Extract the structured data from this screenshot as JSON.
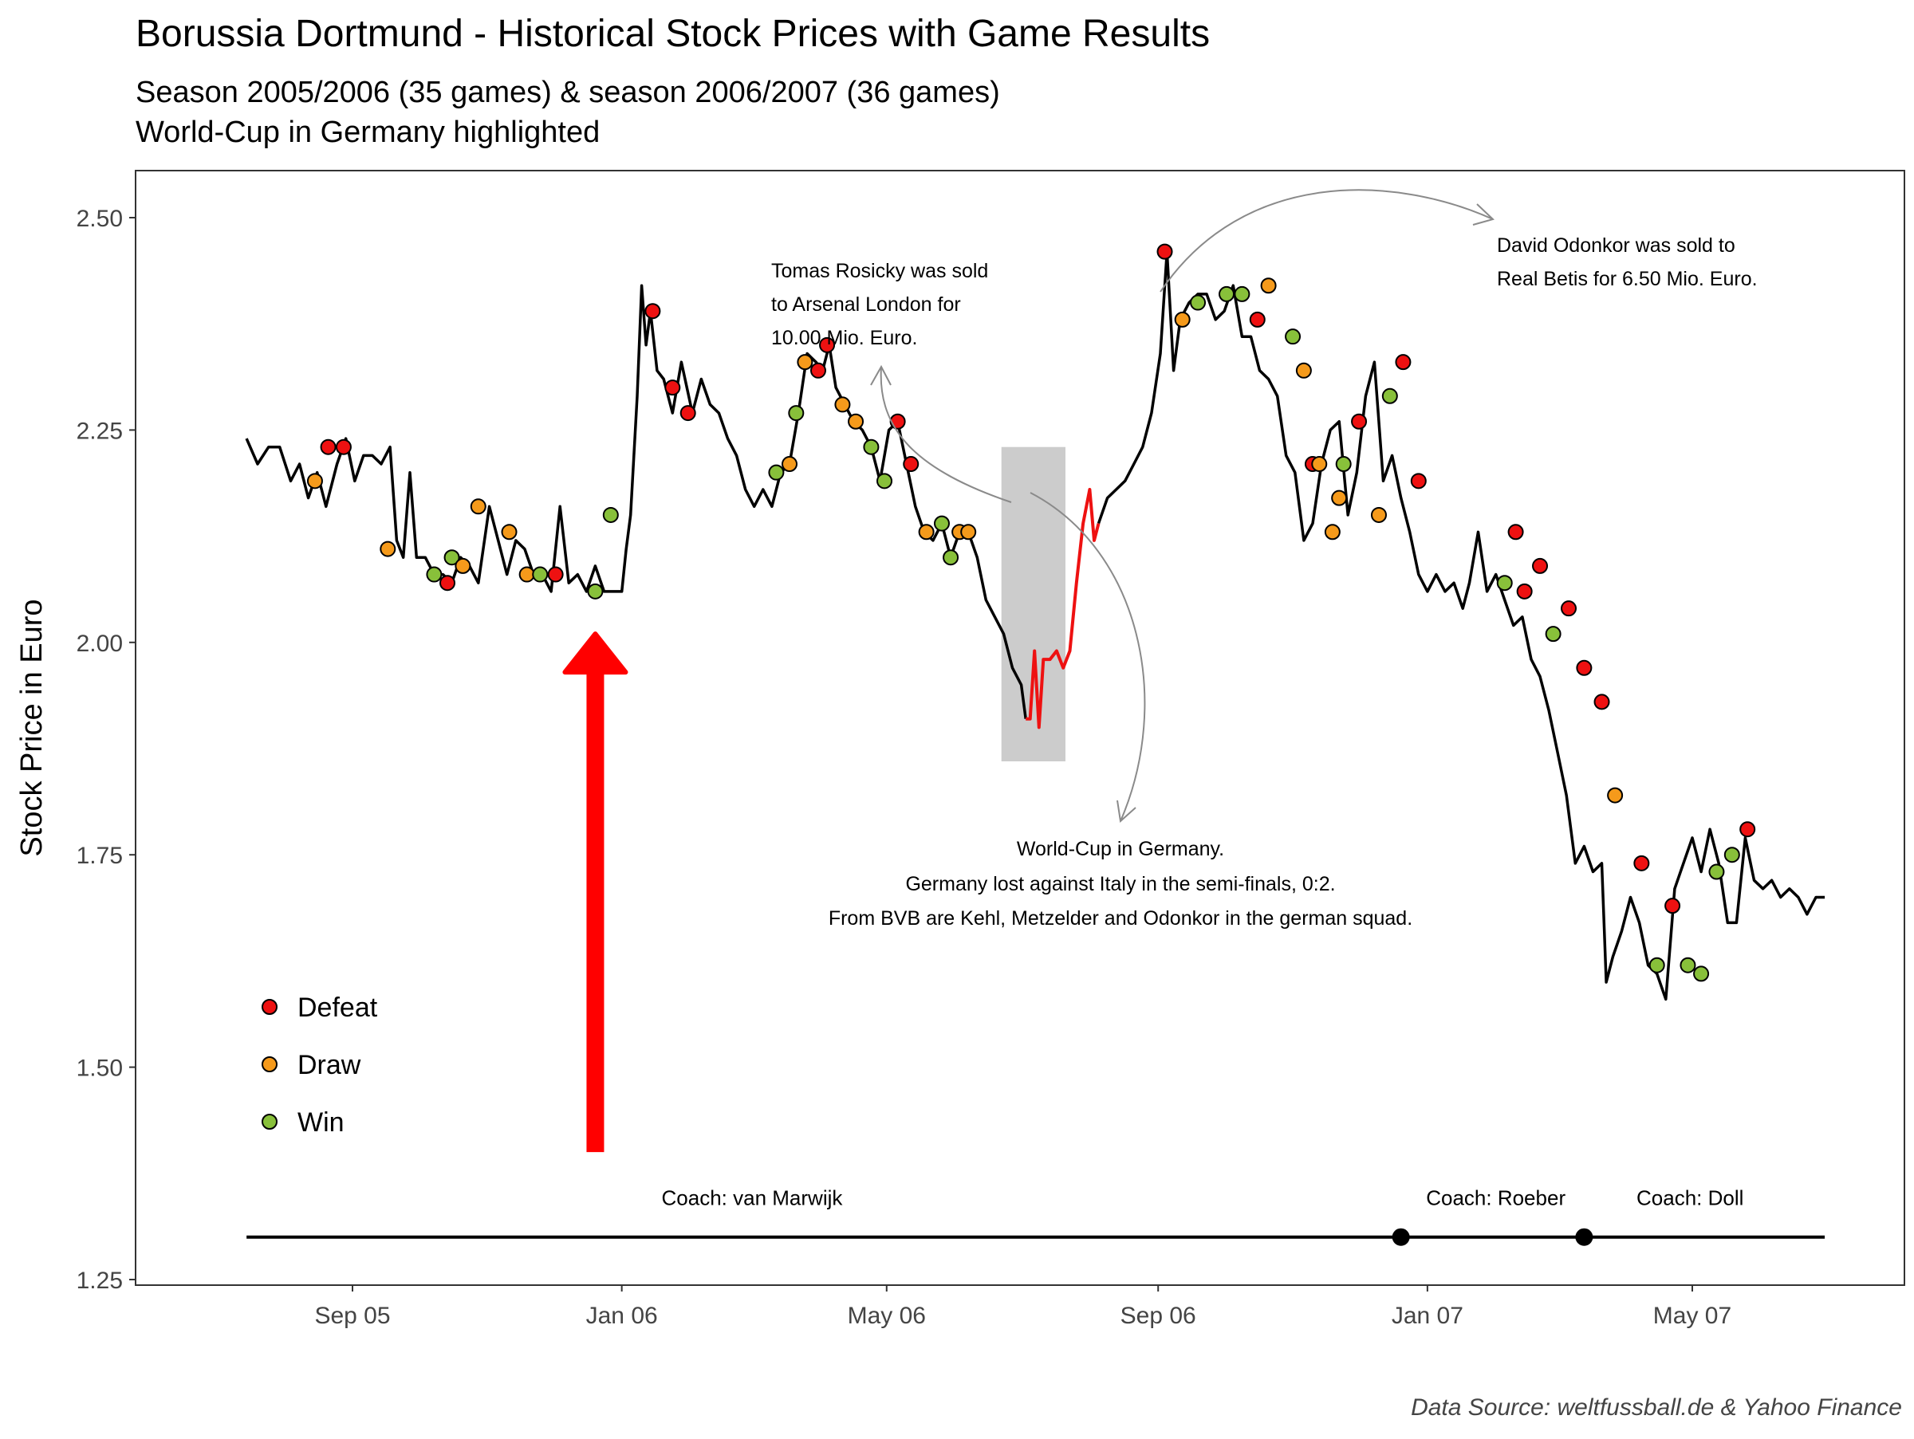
{
  "chart_data": {
    "type": "line",
    "title": "Borussia Dortmund - Historical Stock Prices with Game Results",
    "subtitle_lines": [
      "Season 2005/2006 (35 games) & season 2006/2007 (36 games)",
      "World-Cup in Germany highlighted"
    ],
    "ylabel": "Stock Price in Euro",
    "caption": "Data Source: weltfussball.de & Yahoo Finance",
    "x_range": [
      "2005-07-15",
      "2007-07-01"
    ],
    "ylim": [
      1.25,
      2.55
    ],
    "y_ticks": [
      1.25,
      1.5,
      1.75,
      2.0,
      2.25,
      2.5
    ],
    "y_tick_labels": [
      "1.25",
      "1.50",
      "1.75",
      "2.00",
      "2.25",
      "2.50"
    ],
    "x_ticks": [
      {
        "date": "2005-09-01",
        "label": "Sep 05"
      },
      {
        "date": "2006-01-01",
        "label": "Jan 06"
      },
      {
        "date": "2006-05-01",
        "label": "May 06"
      },
      {
        "date": "2006-09-01",
        "label": "Sep 06"
      },
      {
        "date": "2007-01-01",
        "label": "Jan 07"
      },
      {
        "date": "2007-05-01",
        "label": "May 07"
      }
    ],
    "grid": false,
    "legend_position": "bottom-left",
    "legend": [
      {
        "key": "Defeat",
        "label": "Defeat"
      },
      {
        "key": "Draw",
        "label": "Draw"
      },
      {
        "key": "Win",
        "label": "Win"
      }
    ],
    "colors": {
      "Defeat": "#ee1111",
      "Draw": "#f59a1b",
      "Win": "#88c03a",
      "price_line": "#000000",
      "worldcup_line": "#ee1111",
      "worldcup_band": "#cccccc",
      "arrow": "#ff0000"
    },
    "price_series": [
      [
        "2005-07-15",
        2.24
      ],
      [
        "2005-07-20",
        2.21
      ],
      [
        "2005-07-25",
        2.23
      ],
      [
        "2005-07-30",
        2.23
      ],
      [
        "2005-08-04",
        2.19
      ],
      [
        "2005-08-08",
        2.21
      ],
      [
        "2005-08-12",
        2.17
      ],
      [
        "2005-08-16",
        2.2
      ],
      [
        "2005-08-20",
        2.16
      ],
      [
        "2005-08-25",
        2.21
      ],
      [
        "2005-08-29",
        2.24
      ],
      [
        "2005-09-02",
        2.19
      ],
      [
        "2005-09-06",
        2.22
      ],
      [
        "2005-09-10",
        2.22
      ],
      [
        "2005-09-14",
        2.21
      ],
      [
        "2005-09-18",
        2.23
      ],
      [
        "2005-09-21",
        2.12
      ],
      [
        "2005-09-24",
        2.1
      ],
      [
        "2005-09-27",
        2.2
      ],
      [
        "2005-09-30",
        2.1
      ],
      [
        "2005-10-04",
        2.1
      ],
      [
        "2005-10-08",
        2.08
      ],
      [
        "2005-10-12",
        2.08
      ],
      [
        "2005-10-16",
        2.07
      ],
      [
        "2005-10-20",
        2.1
      ],
      [
        "2005-10-24",
        2.09
      ],
      [
        "2005-10-28",
        2.07
      ],
      [
        "2005-11-02",
        2.16
      ],
      [
        "2005-11-06",
        2.12
      ],
      [
        "2005-11-10",
        2.08
      ],
      [
        "2005-11-14",
        2.12
      ],
      [
        "2005-11-18",
        2.11
      ],
      [
        "2005-11-22",
        2.08
      ],
      [
        "2005-11-26",
        2.08
      ],
      [
        "2005-11-30",
        2.06
      ],
      [
        "2005-12-04",
        2.16
      ],
      [
        "2005-12-08",
        2.07
      ],
      [
        "2005-12-12",
        2.08
      ],
      [
        "2005-12-16",
        2.06
      ],
      [
        "2005-12-20",
        2.09
      ],
      [
        "2005-12-24",
        2.06
      ],
      [
        "2005-12-28",
        2.06
      ],
      [
        "2006-01-01",
        2.06
      ],
      [
        "2006-01-03",
        2.11
      ],
      [
        "2006-01-05",
        2.15
      ],
      [
        "2006-01-08",
        2.29
      ],
      [
        "2006-01-10",
        2.42
      ],
      [
        "2006-01-12",
        2.35
      ],
      [
        "2006-01-14",
        2.39
      ],
      [
        "2006-01-17",
        2.32
      ],
      [
        "2006-01-20",
        2.31
      ],
      [
        "2006-01-24",
        2.27
      ],
      [
        "2006-01-28",
        2.33
      ],
      [
        "2006-02-02",
        2.27
      ],
      [
        "2006-02-06",
        2.31
      ],
      [
        "2006-02-10",
        2.28
      ],
      [
        "2006-02-14",
        2.27
      ],
      [
        "2006-02-18",
        2.24
      ],
      [
        "2006-02-22",
        2.22
      ],
      [
        "2006-02-26",
        2.18
      ],
      [
        "2006-03-02",
        2.16
      ],
      [
        "2006-03-06",
        2.18
      ],
      [
        "2006-03-10",
        2.16
      ],
      [
        "2006-03-14",
        2.2
      ],
      [
        "2006-03-18",
        2.21
      ],
      [
        "2006-03-22",
        2.27
      ],
      [
        "2006-03-26",
        2.34
      ],
      [
        "2006-03-30",
        2.33
      ],
      [
        "2006-04-02",
        2.32
      ],
      [
        "2006-04-05",
        2.35
      ],
      [
        "2006-04-08",
        2.3
      ],
      [
        "2006-04-12",
        2.28
      ],
      [
        "2006-04-16",
        2.26
      ],
      [
        "2006-04-20",
        2.25
      ],
      [
        "2006-04-24",
        2.23
      ],
      [
        "2006-04-28",
        2.19
      ],
      [
        "2006-05-02",
        2.25
      ],
      [
        "2006-05-06",
        2.26
      ],
      [
        "2006-05-10",
        2.21
      ],
      [
        "2006-05-14",
        2.16
      ],
      [
        "2006-05-18",
        2.13
      ],
      [
        "2006-05-22",
        2.12
      ],
      [
        "2006-05-26",
        2.14
      ],
      [
        "2006-05-30",
        2.1
      ],
      [
        "2006-06-03",
        2.13
      ],
      [
        "2006-06-07",
        2.13
      ],
      [
        "2006-06-11",
        2.1
      ],
      [
        "2006-06-15",
        2.05
      ],
      [
        "2006-06-19",
        2.03
      ],
      [
        "2006-06-23",
        2.01
      ],
      [
        "2006-06-27",
        1.97
      ],
      [
        "2006-07-01",
        1.95
      ],
      [
        "2006-07-03",
        1.91
      ]
    ],
    "worldcup_series": [
      [
        "2006-07-03",
        1.91
      ],
      [
        "2006-07-05",
        1.91
      ],
      [
        "2006-07-07",
        1.99
      ],
      [
        "2006-07-09",
        1.9
      ],
      [
        "2006-07-11",
        1.98
      ],
      [
        "2006-07-14",
        1.98
      ],
      [
        "2006-07-17",
        1.99
      ],
      [
        "2006-07-20",
        1.97
      ],
      [
        "2006-07-23",
        1.99
      ],
      [
        "2006-07-26",
        2.07
      ],
      [
        "2006-07-29",
        2.14
      ],
      [
        "2006-08-01",
        2.18
      ],
      [
        "2006-08-03",
        2.12
      ],
      [
        "2006-08-05",
        2.14
      ]
    ],
    "price_series_2": [
      [
        "2006-08-05",
        2.14
      ],
      [
        "2006-08-09",
        2.17
      ],
      [
        "2006-08-13",
        2.18
      ],
      [
        "2006-08-17",
        2.19
      ],
      [
        "2006-08-21",
        2.21
      ],
      [
        "2006-08-25",
        2.23
      ],
      [
        "2006-08-29",
        2.27
      ],
      [
        "2006-09-02",
        2.34
      ],
      [
        "2006-09-05",
        2.46
      ],
      [
        "2006-09-08",
        2.32
      ],
      [
        "2006-09-11",
        2.38
      ],
      [
        "2006-09-15",
        2.4
      ],
      [
        "2006-09-19",
        2.41
      ],
      [
        "2006-09-23",
        2.41
      ],
      [
        "2006-09-27",
        2.38
      ],
      [
        "2006-10-01",
        2.39
      ],
      [
        "2006-10-05",
        2.42
      ],
      [
        "2006-10-09",
        2.36
      ],
      [
        "2006-10-13",
        2.36
      ],
      [
        "2006-10-17",
        2.32
      ],
      [
        "2006-10-21",
        2.31
      ],
      [
        "2006-10-25",
        2.29
      ],
      [
        "2006-10-29",
        2.22
      ],
      [
        "2006-11-02",
        2.2
      ],
      [
        "2006-11-06",
        2.12
      ],
      [
        "2006-11-10",
        2.14
      ],
      [
        "2006-11-14",
        2.21
      ],
      [
        "2006-11-18",
        2.25
      ],
      [
        "2006-11-22",
        2.26
      ],
      [
        "2006-11-26",
        2.15
      ],
      [
        "2006-11-30",
        2.2
      ],
      [
        "2006-12-04",
        2.29
      ],
      [
        "2006-12-08",
        2.33
      ],
      [
        "2006-12-12",
        2.19
      ],
      [
        "2006-12-16",
        2.22
      ],
      [
        "2006-12-20",
        2.17
      ],
      [
        "2006-12-24",
        2.13
      ],
      [
        "2006-12-28",
        2.08
      ],
      [
        "2007-01-01",
        2.06
      ],
      [
        "2007-01-05",
        2.08
      ],
      [
        "2007-01-09",
        2.06
      ],
      [
        "2007-01-13",
        2.07
      ],
      [
        "2007-01-17",
        2.04
      ],
      [
        "2007-01-20",
        2.07
      ],
      [
        "2007-01-24",
        2.13
      ],
      [
        "2007-01-28",
        2.06
      ],
      [
        "2007-02-01",
        2.08
      ],
      [
        "2007-02-05",
        2.05
      ],
      [
        "2007-02-09",
        2.02
      ],
      [
        "2007-02-13",
        2.03
      ],
      [
        "2007-02-17",
        1.98
      ],
      [
        "2007-02-21",
        1.96
      ],
      [
        "2007-02-25",
        1.92
      ],
      [
        "2007-03-01",
        1.87
      ],
      [
        "2007-03-05",
        1.82
      ],
      [
        "2007-03-09",
        1.74
      ],
      [
        "2007-03-13",
        1.76
      ],
      [
        "2007-03-17",
        1.73
      ],
      [
        "2007-03-21",
        1.74
      ],
      [
        "2007-03-23",
        1.6
      ],
      [
        "2007-03-26",
        1.63
      ],
      [
        "2007-03-30",
        1.66
      ],
      [
        "2007-04-03",
        1.7
      ],
      [
        "2007-04-07",
        1.67
      ],
      [
        "2007-04-11",
        1.62
      ],
      [
        "2007-04-15",
        1.61
      ],
      [
        "2007-04-19",
        1.58
      ],
      [
        "2007-04-23",
        1.71
      ],
      [
        "2007-04-27",
        1.74
      ],
      [
        "2007-05-01",
        1.77
      ],
      [
        "2007-05-05",
        1.73
      ],
      [
        "2007-05-09",
        1.78
      ],
      [
        "2007-05-13",
        1.74
      ],
      [
        "2007-05-17",
        1.67
      ],
      [
        "2007-05-21",
        1.67
      ],
      [
        "2007-05-25",
        1.77
      ],
      [
        "2007-05-29",
        1.72
      ],
      [
        "2007-06-02",
        1.71
      ],
      [
        "2007-06-06",
        1.72
      ],
      [
        "2007-06-10",
        1.7
      ],
      [
        "2007-06-14",
        1.71
      ],
      [
        "2007-06-18",
        1.7
      ],
      [
        "2007-06-22",
        1.68
      ],
      [
        "2007-06-26",
        1.7
      ],
      [
        "2007-06-30",
        1.7
      ]
    ],
    "games": [
      [
        "2005-08-15",
        2.19,
        "Draw"
      ],
      [
        "2005-08-21",
        2.23,
        "Defeat"
      ],
      [
        "2005-08-28",
        2.23,
        "Defeat"
      ],
      [
        "2005-09-17",
        2.11,
        "Draw"
      ],
      [
        "2005-10-08",
        2.08,
        "Win"
      ],
      [
        "2005-10-14",
        2.07,
        "Defeat"
      ],
      [
        "2005-10-16",
        2.1,
        "Win"
      ],
      [
        "2005-10-21",
        2.09,
        "Draw"
      ],
      [
        "2005-10-28",
        2.16,
        "Draw"
      ],
      [
        "2005-11-11",
        2.13,
        "Draw"
      ],
      [
        "2005-11-19",
        2.08,
        "Draw"
      ],
      [
        "2005-11-25",
        2.08,
        "Win"
      ],
      [
        "2005-12-02",
        2.08,
        "Defeat"
      ],
      [
        "2005-12-20",
        2.06,
        "Win"
      ],
      [
        "2005-12-27",
        2.15,
        "Win"
      ],
      [
        "2006-01-15",
        2.39,
        "Defeat"
      ],
      [
        "2006-01-24",
        2.3,
        "Defeat"
      ],
      [
        "2006-01-31",
        2.27,
        "Defeat"
      ],
      [
        "2006-03-12",
        2.2,
        "Win"
      ],
      [
        "2006-03-18",
        2.21,
        "Draw"
      ],
      [
        "2006-03-21",
        2.27,
        "Win"
      ],
      [
        "2006-03-25",
        2.33,
        "Draw"
      ],
      [
        "2006-03-31",
        2.32,
        "Defeat"
      ],
      [
        "2006-04-04",
        2.35,
        "Defeat"
      ],
      [
        "2006-04-11",
        2.28,
        "Draw"
      ],
      [
        "2006-04-17",
        2.26,
        "Draw"
      ],
      [
        "2006-04-24",
        2.23,
        "Win"
      ],
      [
        "2006-04-30",
        2.19,
        "Win"
      ],
      [
        "2006-05-06",
        2.26,
        "Defeat"
      ],
      [
        "2006-05-12",
        2.21,
        "Defeat"
      ],
      [
        "2006-05-19",
        2.13,
        "Draw"
      ],
      [
        "2006-05-26",
        2.14,
        "Win"
      ],
      [
        "2006-05-30",
        2.1,
        "Win"
      ],
      [
        "2006-06-03",
        2.13,
        "Draw"
      ],
      [
        "2006-06-07",
        2.13,
        "Draw"
      ],
      [
        "2006-09-04",
        2.46,
        "Defeat"
      ],
      [
        "2006-09-12",
        2.38,
        "Draw"
      ],
      [
        "2006-09-19",
        2.4,
        "Win"
      ],
      [
        "2006-10-02",
        2.41,
        "Win"
      ],
      [
        "2006-10-09",
        2.41,
        "Win"
      ],
      [
        "2006-10-16",
        2.38,
        "Defeat"
      ],
      [
        "2006-10-21",
        2.42,
        "Draw"
      ],
      [
        "2006-11-01",
        2.36,
        "Win"
      ],
      [
        "2006-11-06",
        2.32,
        "Draw"
      ],
      [
        "2006-11-10",
        2.21,
        "Defeat"
      ],
      [
        "2006-11-13",
        2.21,
        "Draw"
      ],
      [
        "2006-11-19",
        2.13,
        "Draw"
      ],
      [
        "2006-11-22",
        2.17,
        "Draw"
      ],
      [
        "2006-11-24",
        2.21,
        "Win"
      ],
      [
        "2006-12-01",
        2.26,
        "Defeat"
      ],
      [
        "2006-12-10",
        2.15,
        "Draw"
      ],
      [
        "2006-12-15",
        2.29,
        "Win"
      ],
      [
        "2006-12-21",
        2.33,
        "Defeat"
      ],
      [
        "2006-12-28",
        2.19,
        "Defeat"
      ],
      [
        "2007-02-05",
        2.07,
        "Win"
      ],
      [
        "2007-02-10",
        2.13,
        "Defeat"
      ],
      [
        "2007-02-14",
        2.06,
        "Defeat"
      ],
      [
        "2007-02-21",
        2.09,
        "Defeat"
      ],
      [
        "2007-02-27",
        2.01,
        "Win"
      ],
      [
        "2007-03-06",
        2.04,
        "Defeat"
      ],
      [
        "2007-03-13",
        1.97,
        "Defeat"
      ],
      [
        "2007-03-21",
        1.93,
        "Defeat"
      ],
      [
        "2007-03-27",
        1.82,
        "Draw"
      ],
      [
        "2007-04-08",
        1.74,
        "Defeat"
      ],
      [
        "2007-04-15",
        1.62,
        "Win"
      ],
      [
        "2007-04-22",
        1.69,
        "Defeat"
      ],
      [
        "2007-04-29",
        1.62,
        "Win"
      ],
      [
        "2007-05-05",
        1.61,
        "Win"
      ],
      [
        "2007-05-12",
        1.73,
        "Win"
      ],
      [
        "2007-05-19",
        1.75,
        "Win"
      ],
      [
        "2007-05-26",
        1.78,
        "Defeat"
      ]
    ],
    "worldcup_band": {
      "x_start": "2006-06-22",
      "x_end": "2006-07-21",
      "y_min": 1.86,
      "y_max": 2.23
    },
    "arrow": {
      "date": "2005-12-20",
      "y_from": 1.4,
      "y_to": 2.01
    },
    "coach_line": {
      "y": 1.3,
      "x_start": "2005-07-15",
      "x_end": "2007-06-30",
      "switch_points": [
        "2006-12-20",
        "2007-03-13"
      ],
      "labels": [
        {
          "text": "Coach: van Marwijk",
          "date": "2006-03-01"
        },
        {
          "text": "Coach: Roeber",
          "date": "2007-02-01"
        },
        {
          "text": "Coach: Doll",
          "date": "2007-04-30"
        }
      ]
    },
    "annotations": {
      "rosicky": [
        "Tomas Rosicky was sold",
        "to Arsenal London for",
        "10.00 Mio. Euro."
      ],
      "odonkor": [
        "David Odonkor was sold to",
        "Real Betis for 6.50 Mio. Euro."
      ],
      "worldcup": [
        "World-Cup in Germany.",
        "Germany lost against Italy in the semi-finals,  0:2.",
        "From BVB are Kehl, Metzelder and Odonkor in the german squad."
      ]
    }
  }
}
